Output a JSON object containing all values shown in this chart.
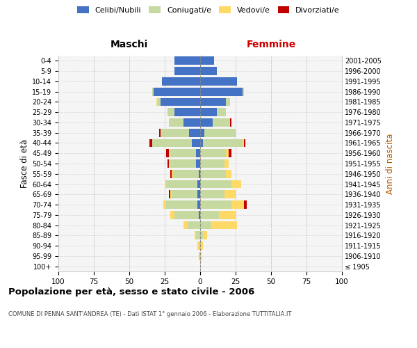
{
  "age_groups": [
    "100+",
    "95-99",
    "90-94",
    "85-89",
    "80-84",
    "75-79",
    "70-74",
    "65-69",
    "60-64",
    "55-59",
    "50-54",
    "45-49",
    "40-44",
    "35-39",
    "30-34",
    "25-29",
    "20-24",
    "15-19",
    "10-14",
    "5-9",
    "0-4"
  ],
  "birth_years": [
    "≤ 1905",
    "1906-1910",
    "1911-1915",
    "1916-1920",
    "1921-1925",
    "1926-1930",
    "1931-1935",
    "1936-1940",
    "1941-1945",
    "1946-1950",
    "1951-1955",
    "1956-1960",
    "1961-1965",
    "1966-1970",
    "1971-1975",
    "1976-1980",
    "1981-1985",
    "1986-1990",
    "1991-1995",
    "1996-2000",
    "2001-2005"
  ],
  "colors": {
    "celibi": "#4472c4",
    "coniugati": "#c5d9a0",
    "vedovi": "#ffd966",
    "divorziati": "#c00000"
  },
  "maschi": {
    "celibi": [
      0,
      0,
      0,
      0,
      0,
      1,
      2,
      2,
      2,
      1,
      3,
      3,
      6,
      8,
      12,
      18,
      28,
      33,
      27,
      18,
      18
    ],
    "coniugati": [
      0,
      1,
      1,
      3,
      9,
      17,
      22,
      18,
      22,
      18,
      18,
      18,
      28,
      20,
      10,
      5,
      2,
      1,
      0,
      0,
      0
    ],
    "vedovi": [
      0,
      0,
      1,
      1,
      3,
      3,
      2,
      1,
      1,
      1,
      1,
      1,
      0,
      0,
      0,
      0,
      1,
      0,
      0,
      0,
      0
    ],
    "divorziati": [
      0,
      0,
      0,
      0,
      0,
      0,
      0,
      1,
      0,
      1,
      1,
      2,
      2,
      1,
      0,
      0,
      0,
      0,
      0,
      0,
      0
    ]
  },
  "femmine": {
    "celibi": [
      0,
      0,
      0,
      0,
      0,
      0,
      0,
      0,
      0,
      0,
      0,
      0,
      2,
      3,
      9,
      12,
      18,
      30,
      26,
      12,
      10
    ],
    "coniugati": [
      0,
      0,
      0,
      2,
      8,
      13,
      22,
      17,
      22,
      18,
      17,
      18,
      28,
      22,
      12,
      6,
      3,
      1,
      0,
      0,
      0
    ],
    "vedovi": [
      0,
      1,
      2,
      3,
      18,
      12,
      9,
      8,
      7,
      4,
      3,
      2,
      1,
      0,
      0,
      0,
      0,
      0,
      0,
      0,
      0
    ],
    "divorziati": [
      0,
      0,
      0,
      0,
      0,
      0,
      2,
      0,
      0,
      0,
      0,
      2,
      1,
      0,
      1,
      0,
      0,
      0,
      0,
      0,
      0
    ]
  },
  "xlim": 100,
  "title": "Popolazione per età, sesso e stato civile - 2006",
  "subtitle": "COMUNE DI PENNA SANT'ANDREA (TE) - Dati ISTAT 1° gennaio 2006 - Elaborazione TUTTITALIA.IT",
  "ylabel_left": "Fasce di età",
  "ylabel_right": "Anni di nascita",
  "legend_labels": [
    "Celibi/Nubili",
    "Coniugati/e",
    "Vedovi/e",
    "Divorziati/e"
  ],
  "header_maschi": "Maschi",
  "header_femmine": "Femmine"
}
